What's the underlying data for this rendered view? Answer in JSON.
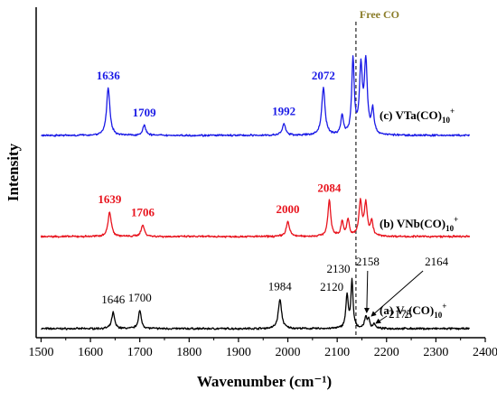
{
  "chart_data": {
    "type": "line",
    "xlabel": "Wavenumber (cm⁻¹)",
    "ylabel": "Intensity",
    "xlim": [
      1490,
      2400
    ],
    "xticks": [
      1500,
      1600,
      1700,
      1800,
      1900,
      2000,
      2100,
      2200,
      2300,
      2400
    ],
    "yticks_shown": false,
    "reference_line": {
      "x": 2138,
      "label": "Free CO",
      "color": "#8B7D2A",
      "style": "dashed"
    },
    "series": [
      {
        "name": "(a) V₂(CO)₁₀⁺",
        "label_parts": [
          "(a) V",
          "2",
          "(CO)",
          "10",
          "+"
        ],
        "color": "#000000",
        "peaks": [
          {
            "x": 1646,
            "h": 0.2,
            "w": 3.5
          },
          {
            "x": 1700,
            "h": 0.22,
            "w": 3.5
          },
          {
            "x": 1984,
            "h": 0.36,
            "w": 4.0
          },
          {
            "x": 2120,
            "h": 0.4,
            "w": 3.0
          },
          {
            "x": 2130,
            "h": 0.58,
            "w": 2.5
          },
          {
            "x": 2158,
            "h": 0.14,
            "w": 3.0
          },
          {
            "x": 2164,
            "h": 0.1,
            "w": 2.5
          },
          {
            "x": 2175,
            "h": 0.06,
            "w": 2.5
          }
        ],
        "labels": [
          {
            "text": "1646",
            "x": 1646
          },
          {
            "text": "1700",
            "x": 1700
          },
          {
            "text": "1984",
            "x": 1984
          },
          {
            "text": "2120",
            "x": 2120
          },
          {
            "text": "2130",
            "x": 2130
          },
          {
            "text": "2158",
            "x": 2158
          },
          {
            "text": "2164",
            "x": 2164
          },
          {
            "text": "2175",
            "x": 2175
          }
        ]
      },
      {
        "name": "(b) VNb(CO)₁₀⁺",
        "label_parts": [
          "(b) VNb(CO)",
          "10",
          "+"
        ],
        "color": "#E8141E",
        "peaks": [
          {
            "x": 1639,
            "h": 0.3,
            "w": 4.0
          },
          {
            "x": 1706,
            "h": 0.14,
            "w": 4.0
          },
          {
            "x": 2000,
            "h": 0.18,
            "w": 4.0
          },
          {
            "x": 2084,
            "h": 0.44,
            "w": 3.5
          },
          {
            "x": 2110,
            "h": 0.18,
            "w": 3.0
          },
          {
            "x": 2122,
            "h": 0.2,
            "w": 3.0
          },
          {
            "x": 2147,
            "h": 0.42,
            "w": 3.5
          },
          {
            "x": 2158,
            "h": 0.4,
            "w": 3.5
          },
          {
            "x": 2170,
            "h": 0.18,
            "w": 3.0
          }
        ],
        "labels": [
          {
            "text": "1639",
            "x": 1639
          },
          {
            "text": "1706",
            "x": 1706
          },
          {
            "text": "2000",
            "x": 2000
          },
          {
            "text": "2084",
            "x": 2084
          }
        ]
      },
      {
        "name": "(c) VTa(CO)₁₀⁺",
        "label_parts": [
          "(c) VTa(CO)",
          "10",
          "+"
        ],
        "color": "#1A1AE6",
        "peaks": [
          {
            "x": 1636,
            "h": 0.58,
            "w": 4.0
          },
          {
            "x": 1709,
            "h": 0.12,
            "w": 4.0
          },
          {
            "x": 1992,
            "h": 0.14,
            "w": 4.0
          },
          {
            "x": 2072,
            "h": 0.58,
            "w": 4.0
          },
          {
            "x": 2110,
            "h": 0.24,
            "w": 3.0
          },
          {
            "x": 2132,
            "h": 0.92,
            "w": 3.0
          },
          {
            "x": 2148,
            "h": 0.8,
            "w": 3.5
          },
          {
            "x": 2158,
            "h": 0.88,
            "w": 3.5
          },
          {
            "x": 2172,
            "h": 0.3,
            "w": 3.0
          }
        ],
        "labels": [
          {
            "text": "1636",
            "x": 1636
          },
          {
            "text": "1709",
            "x": 1709
          },
          {
            "text": "1992",
            "x": 1992
          },
          {
            "text": "2072",
            "x": 2072
          }
        ]
      }
    ]
  }
}
